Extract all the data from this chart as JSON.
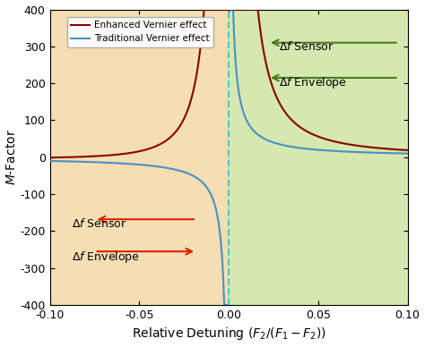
{
  "xlabel": "Relative Detuning ($F_2/(F_1-F_2)$)",
  "ylabel": "$M$-Factor",
  "xlim": [
    -0.1,
    0.1
  ],
  "ylim": [
    -400,
    400
  ],
  "xticks": [
    -0.1,
    -0.05,
    0.0,
    0.05,
    0.1
  ],
  "yticks": [
    -400,
    -300,
    -200,
    -100,
    0,
    100,
    200,
    300,
    400
  ],
  "bg_left_color": "#f5deb3",
  "bg_right_color": "#d4e8b0",
  "enhanced_color": "#8b0000",
  "traditional_color": "#4a90c4",
  "dashed_line_color": "#3ecfcf",
  "arrow_red_color": "#dd2200",
  "arrow_green_color": "#4a7a1e",
  "legend_enhanced": "Enhanced Vernier effect",
  "legend_traditional": "Traditional Vernier effect",
  "enh_factor": 0.09
}
